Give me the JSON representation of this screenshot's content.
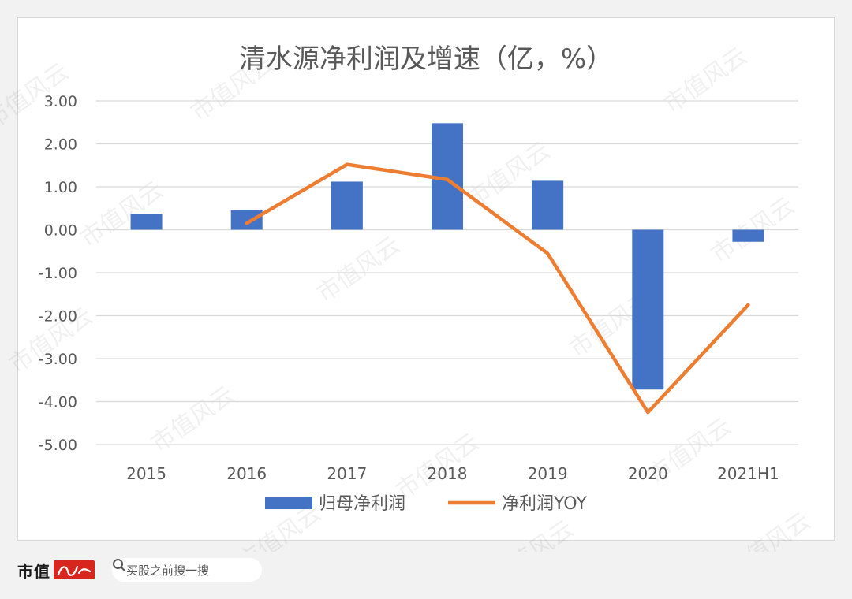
{
  "chart_data": {
    "type": "bar",
    "title": "清水源净利润及增速（亿，%）",
    "categories": [
      "2015",
      "2016",
      "2017",
      "2018",
      "2019",
      "2020",
      "2021H1"
    ],
    "series": [
      {
        "name": "归母净利润",
        "type": "bar",
        "color": "#4472c4",
        "values": [
          0.37,
          0.45,
          1.12,
          2.48,
          1.14,
          -3.72,
          -0.28
        ]
      },
      {
        "name": "净利润YOY",
        "type": "line",
        "color": "#ed7d31",
        "values": [
          null,
          0.15,
          1.52,
          1.17,
          -0.55,
          -4.25,
          -1.75
        ]
      }
    ],
    "ylim": [
      -5,
      3
    ],
    "yticks": [
      "3.00",
      "2.00",
      "1.00",
      "0.00",
      "-1.00",
      "-2.00",
      "-3.00",
      "-4.00",
      "-5.00"
    ],
    "grid": true,
    "legend": "bottom"
  },
  "watermark": "市值风云",
  "footer": {
    "brand": "市值",
    "search_placeholder": "买股之前搜一搜"
  },
  "icons": {
    "search": "search-icon",
    "brand_seal": "brand-seal-icon"
  }
}
